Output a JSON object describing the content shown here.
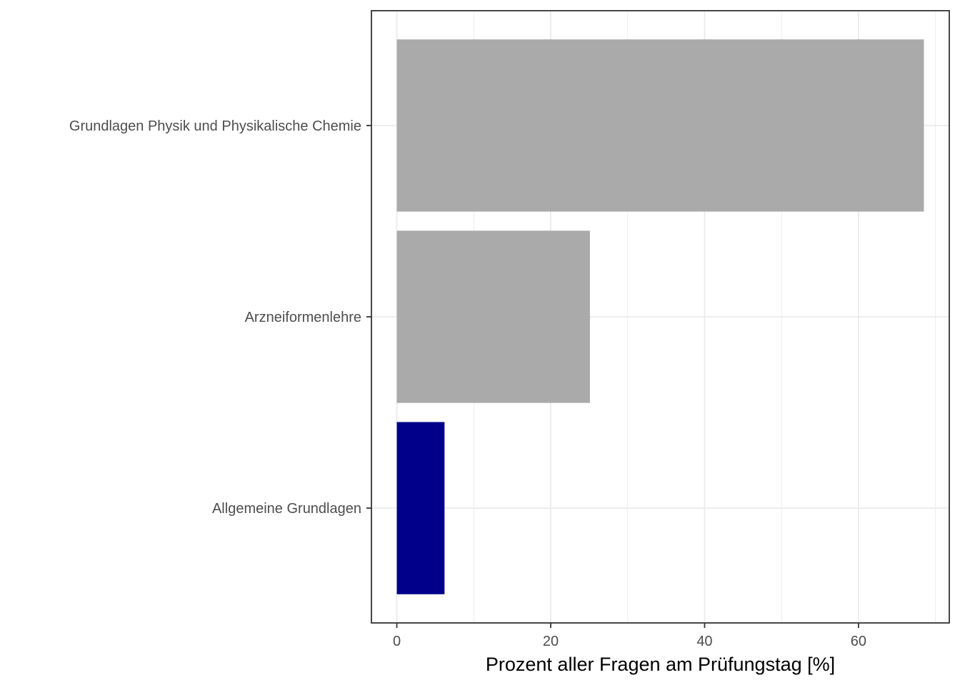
{
  "chart_data": {
    "type": "bar",
    "orientation": "horizontal",
    "categories": [
      "Grundlagen Physik und Physikalische Chemie",
      "Arzneiformenlehre",
      "Allgemeine Grundlagen"
    ],
    "values": [
      68.5,
      25.1,
      6.2
    ],
    "bar_colors": [
      "#aaaaaa",
      "#aaaaaa",
      "#00008b"
    ],
    "xlabel": "Prozent aller Fragen am Prüfungstag [%]",
    "ylabel": "",
    "xlim": [
      -3.3,
      71.8
    ],
    "x_ticks": [
      0,
      20,
      40,
      60
    ],
    "x_tick_labels": [
      "0",
      "20",
      "40",
      "60"
    ],
    "grid": true,
    "legend": "none"
  }
}
